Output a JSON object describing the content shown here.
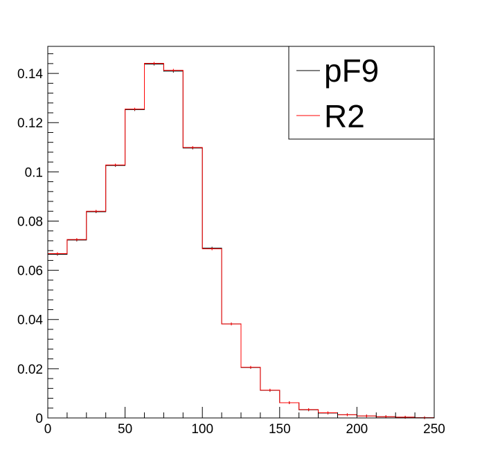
{
  "chart_data": {
    "type": "histogram",
    "title": "",
    "xlabel": "",
    "ylabel": "",
    "xlim": [
      0,
      250
    ],
    "ylim": [
      0,
      0.151
    ],
    "grid": false,
    "legend": "top-right",
    "bin_edges": [
      0,
      12.5,
      25,
      37.5,
      50,
      62.5,
      75,
      87.5,
      100,
      112.5,
      125,
      137.5,
      150,
      162.5,
      175,
      187.5,
      200,
      212.5,
      225,
      237.5,
      250
    ],
    "x_ticks": [
      0,
      50,
      100,
      150,
      200,
      250
    ],
    "x_tick_labels": [
      "0",
      "50",
      "100",
      "150",
      "200",
      "250"
    ],
    "y_ticks": [
      0,
      0.02,
      0.04,
      0.06,
      0.08,
      0.1,
      0.12,
      0.14
    ],
    "y_tick_labels": [
      "0",
      "0.02",
      "0.04",
      "0.06",
      "0.08",
      "0.1",
      "0.12",
      "0.14"
    ],
    "series": [
      {
        "name": "pF9",
        "color": "#000000",
        "values": [
          0.0665,
          0.0723,
          0.0838,
          0.1026,
          0.1253,
          0.1438,
          0.1409,
          0.1097,
          0.069,
          0.0382,
          0.0205,
          0.0112,
          0.0062,
          0.0033,
          0.002,
          0.0013,
          0.0008,
          0.0005,
          0.0003,
          0.0001
        ]
      },
      {
        "name": "R2",
        "color": "#ff0000",
        "values": [
          0.0668,
          0.0725,
          0.084,
          0.1028,
          0.1255,
          0.1441,
          0.1413,
          0.1099,
          0.0687,
          0.0382,
          0.0206,
          0.0113,
          0.0062,
          0.0034,
          0.0021,
          0.0013,
          0.0008,
          0.0005,
          0.0003,
          0.0001
        ]
      }
    ]
  }
}
